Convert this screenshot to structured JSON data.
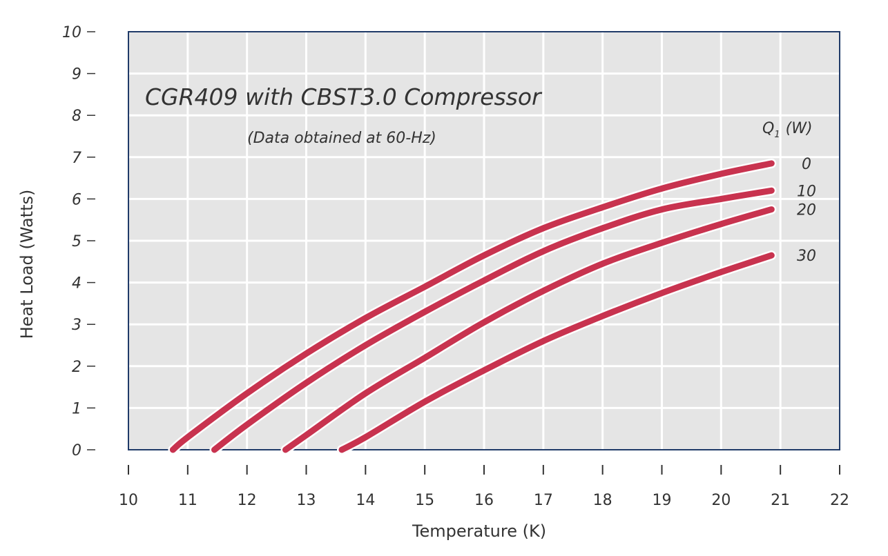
{
  "colors": {
    "plot_bg": "#e5e5e5",
    "grid": "#ffffff",
    "frame": "#1f3a68",
    "series": "#c8334f",
    "series_outline": "#ffffff",
    "text": "#333333"
  },
  "chart_data": {
    "type": "line",
    "title": "CGR409 with CBST3.0 Compressor",
    "subtitle": "(Data obtained at 60-Hz)",
    "xlabel": "Temperature (K)",
    "ylabel": "Heat Load (Watts)",
    "xlim": [
      10,
      22
    ],
    "ylim": [
      0,
      10
    ],
    "xticks": [
      "10",
      "11",
      "12",
      "13",
      "14",
      "15",
      "16",
      "17",
      "18",
      "19",
      "20",
      "21",
      "22"
    ],
    "yticks": [
      "0",
      "1",
      "2",
      "3",
      "4",
      "5",
      "6",
      "7",
      "8",
      "9",
      "10"
    ],
    "grid": true,
    "legend_title_main": "Q",
    "legend_title_sub": "1",
    "legend_title_unit": "(W)",
    "legend_placement": "right",
    "series": [
      {
        "name": "0",
        "points": [
          [
            10.75,
            0
          ],
          [
            11,
            0.3
          ],
          [
            12,
            1.35
          ],
          [
            13,
            2.3
          ],
          [
            14,
            3.15
          ],
          [
            15,
            3.9
          ],
          [
            16,
            4.65
          ],
          [
            17,
            5.3
          ],
          [
            18,
            5.8
          ],
          [
            19,
            6.25
          ],
          [
            20,
            6.6
          ],
          [
            20.85,
            6.85
          ]
        ]
      },
      {
        "name": "10",
        "points": [
          [
            11.45,
            0
          ],
          [
            12,
            0.6
          ],
          [
            13,
            1.6
          ],
          [
            14,
            2.5
          ],
          [
            15,
            3.3
          ],
          [
            16,
            4.05
          ],
          [
            17,
            4.75
          ],
          [
            18,
            5.3
          ],
          [
            19,
            5.75
          ],
          [
            20,
            6.0
          ],
          [
            20.85,
            6.2
          ]
        ]
      },
      {
        "name": "20",
        "points": [
          [
            12.65,
            0
          ],
          [
            13,
            0.35
          ],
          [
            14,
            1.35
          ],
          [
            15,
            2.2
          ],
          [
            16,
            3.05
          ],
          [
            17,
            3.8
          ],
          [
            18,
            4.45
          ],
          [
            19,
            4.95
          ],
          [
            20,
            5.4
          ],
          [
            20.85,
            5.75
          ]
        ]
      },
      {
        "name": "30",
        "points": [
          [
            13.6,
            0
          ],
          [
            14,
            0.3
          ],
          [
            15,
            1.15
          ],
          [
            16,
            1.9
          ],
          [
            17,
            2.6
          ],
          [
            18,
            3.2
          ],
          [
            19,
            3.75
          ],
          [
            20,
            4.25
          ],
          [
            20.85,
            4.65
          ]
        ]
      }
    ]
  }
}
